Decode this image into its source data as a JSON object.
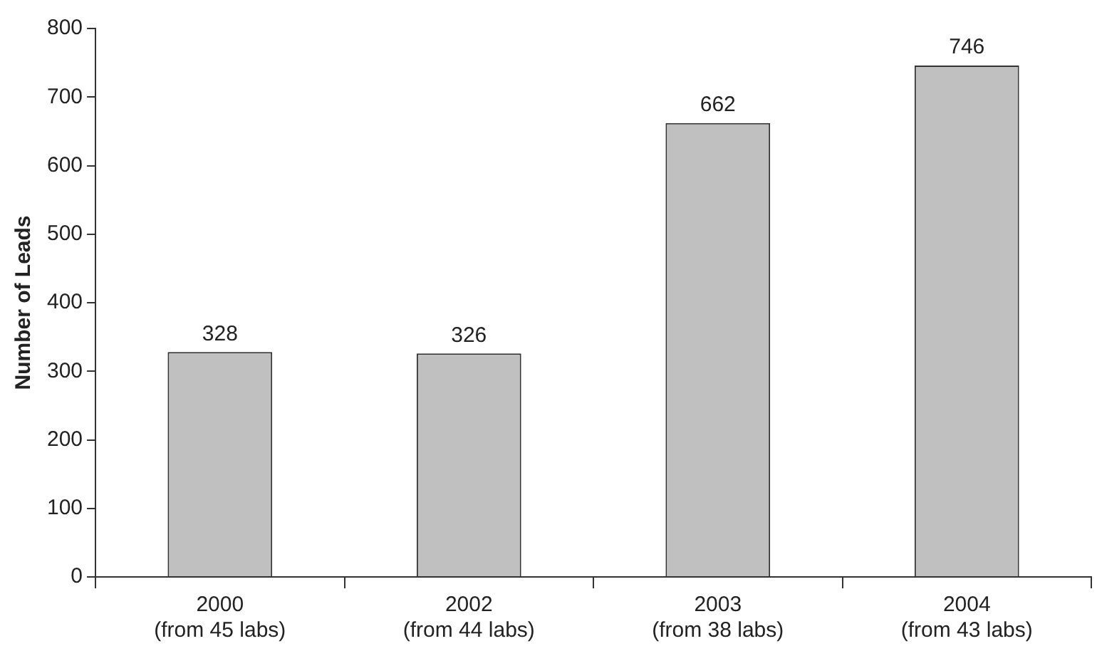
{
  "chart_data": {
    "type": "bar",
    "ylabel": "Number of Leads",
    "categories": [
      "2000\n(from 45 labs)",
      "2002\n(from 44 labs)",
      "2003\n(from 38 labs)",
      "2004\n(from 43 labs)"
    ],
    "values": [
      328,
      326,
      662,
      746
    ],
    "color": "#c0c0c0",
    "ylim": [
      0,
      800
    ],
    "yticks": [
      0,
      100,
      200,
      300,
      400,
      500,
      600,
      700,
      800
    ],
    "grid": false,
    "legend": false,
    "data_labels": true
  }
}
